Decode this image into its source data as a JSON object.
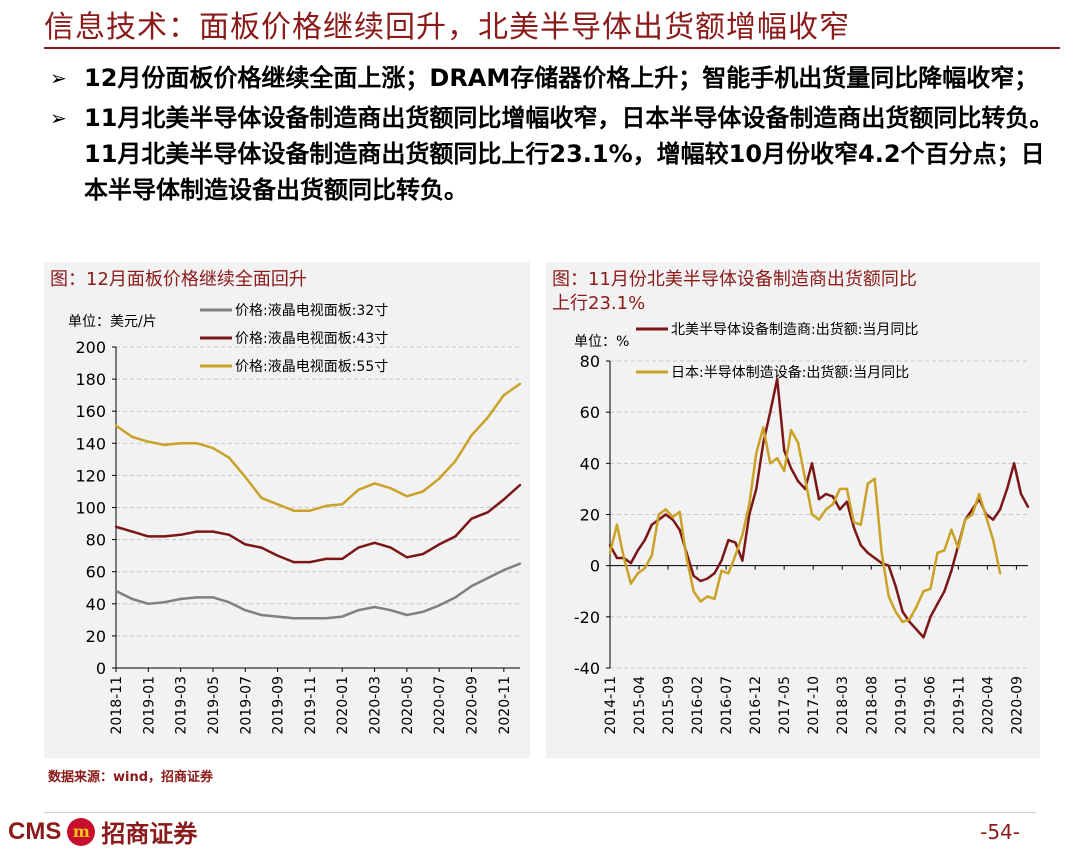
{
  "header": {
    "title": "信息技术：面板价格继续回升，北美半导体出货额增幅收窄"
  },
  "bullets": [
    "12月份面板价格继续全面上涨；DRAM存储器价格上升；智能手机出货量同比降幅收窄；",
    "11月北美半导体设备制造商出货额同比增幅收窄，日本半导体设备制造商出货额同比转负。11月北美半导体设备制造商出货额同比上行23.1%，增幅较10月份收窄4.2个百分点；日本半导体制造设备出货额同比转负。"
  ],
  "bullet_arrow": "➢",
  "left_panel": {
    "title": "图：12月面板价格继续全面回升",
    "unit": "单位：美元/片"
  },
  "right_panel": {
    "title_line1": "图：11月份北美半导体设备制造商出货额同比",
    "title_line2": "上行23.1%",
    "unit": "单位：%"
  },
  "footer": {
    "source": "数据来源：wind，招商证券",
    "logo_cms": "CMS",
    "logo_mark": "m",
    "logo_cn": "招商证券",
    "page_number": "-54-"
  },
  "colors": {
    "brand": "#8b1a1a",
    "gray": "#808080",
    "maroon": "#7b1616",
    "gold": "#c9a227"
  },
  "chart_data": [
    {
      "type": "line",
      "title": "图：12月面板价格继续全面回升",
      "ylabel": "单位：美元/片",
      "ylim": [
        0,
        200
      ],
      "yticks": [
        0,
        20,
        40,
        60,
        80,
        100,
        120,
        140,
        160,
        180,
        200
      ],
      "x": [
        "2018-11",
        "2018-12",
        "2019-01",
        "2019-02",
        "2019-03",
        "2019-04",
        "2019-05",
        "2019-06",
        "2019-07",
        "2019-08",
        "2019-09",
        "2019-10",
        "2019-11",
        "2019-12",
        "2020-01",
        "2020-02",
        "2020-03",
        "2020-04",
        "2020-05",
        "2020-06",
        "2020-07",
        "2020-08",
        "2020-09",
        "2020-10",
        "2020-11",
        "2020-12"
      ],
      "xticks": [
        "2018-11",
        "2019-01",
        "2019-03",
        "2019-05",
        "2019-07",
        "2019-09",
        "2019-11",
        "2020-01",
        "2020-03",
        "2020-05",
        "2020-07",
        "2020-09",
        "2020-11"
      ],
      "legend_position": "top",
      "series": [
        {
          "name": "价格:液晶电视面板:32寸",
          "color": "#808080",
          "values": [
            48,
            43,
            40,
            41,
            43,
            44,
            44,
            41,
            36,
            33,
            32,
            31,
            31,
            31,
            32,
            36,
            38,
            36,
            33,
            35,
            39,
            44,
            51,
            56,
            61,
            65
          ]
        },
        {
          "name": "价格:液晶电视面板:43寸",
          "color": "#7b1616",
          "values": [
            88,
            85,
            82,
            82,
            83,
            85,
            85,
            83,
            77,
            75,
            70,
            66,
            66,
            68,
            68,
            75,
            78,
            75,
            69,
            71,
            77,
            82,
            93,
            97,
            105,
            114
          ]
        },
        {
          "name": "价格:液晶电视面板:55寸",
          "color": "#c9a227",
          "values": [
            151,
            144,
            141,
            139,
            140,
            140,
            137,
            131,
            119,
            106,
            102,
            98,
            98,
            101,
            102,
            111,
            115,
            112,
            107,
            110,
            118,
            129,
            145,
            156,
            170,
            177
          ]
        }
      ]
    },
    {
      "type": "line",
      "title": "图：11月份北美半导体设备制造商出货额同比上行23.1%",
      "ylabel": "单位：%",
      "ylim": [
        -40,
        80
      ],
      "yticks": [
        -40,
        -20,
        0,
        20,
        40,
        60,
        80
      ],
      "x_start": "2014-11",
      "x_end": "2020-11",
      "xticks": [
        "2014-11",
        "2015-04",
        "2015-09",
        "2016-02",
        "2016-07",
        "2016-12",
        "2017-05",
        "2017-10",
        "2018-03",
        "2018-08",
        "2019-01",
        "2019-06",
        "2019-11",
        "2020-04",
        "2020-09"
      ],
      "legend_position": "top",
      "series": [
        {
          "name": "北美半导体设备制造商:出货额:当月同比",
          "color": "#7b1616",
          "values": [
            8,
            3,
            3,
            1,
            6,
            10,
            16,
            18,
            20,
            18,
            14,
            5,
            -4,
            -6,
            -5,
            -3,
            2,
            10,
            9,
            2,
            20,
            30,
            48,
            60,
            73,
            45,
            38,
            33,
            30,
            40,
            26,
            28,
            27,
            22,
            25,
            15,
            8,
            5,
            3,
            1,
            0,
            -8,
            -18,
            -22,
            -25,
            -28,
            -20,
            -15,
            -10,
            -2,
            8,
            18,
            22,
            26,
            20,
            18,
            22,
            30,
            40,
            28,
            23
          ]
        },
        {
          "name": "日本:半导体制造设备:出货额:当月同比",
          "color": "#c9a227",
          "values": [
            5,
            16,
            3,
            -7,
            -3,
            -1,
            4,
            20,
            22,
            19,
            21,
            3,
            -10,
            -14,
            -12,
            -13,
            -2,
            -3,
            4,
            12,
            24,
            44,
            54,
            40,
            42,
            37,
            53,
            48,
            34,
            20,
            18,
            22,
            24,
            30,
            30,
            17,
            16,
            32,
            34,
            5,
            -12,
            -18,
            -22,
            -21,
            -16,
            -10,
            -9,
            5,
            6,
            14,
            7,
            18,
            20,
            28,
            19,
            10,
            -3
          ]
        }
      ]
    }
  ]
}
